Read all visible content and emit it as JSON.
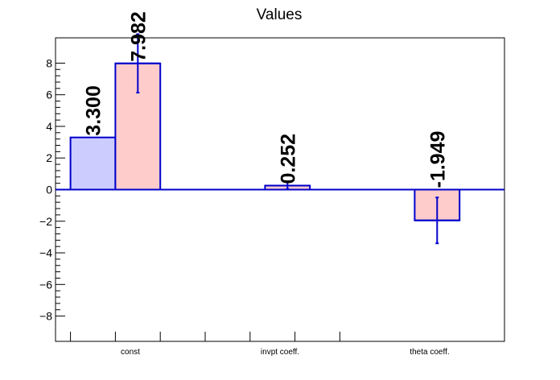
{
  "chart_data": {
    "type": "bar",
    "title": "Values",
    "categories": [
      "const",
      "invpt coeff.",
      "theta coeff."
    ],
    "series": [
      {
        "color": "#ccccff",
        "edge_color": "#0000cc",
        "values": [
          3.3,
          null,
          null
        ],
        "labels": [
          "3.300",
          "",
          ""
        ],
        "errors": [
          null,
          null,
          null
        ]
      },
      {
        "color": "#ffcccc",
        "edge_color": "#0000cc",
        "values": [
          7.982,
          0.252,
          -1.949
        ],
        "labels": [
          "7.982",
          "0.252",
          "-1.949"
        ],
        "errors": [
          1.85,
          0.22,
          1.45
        ]
      }
    ],
    "ylim": [
      -9.6,
      9.6
    ],
    "yticks": [
      -8,
      -6,
      -4,
      -2,
      0,
      2,
      4,
      6,
      8
    ],
    "ytick_labels": [
      "−8",
      "−6",
      "−4",
      "−2",
      "0",
      "2",
      "4",
      "6",
      "8"
    ],
    "grid": false,
    "legend": "none"
  }
}
